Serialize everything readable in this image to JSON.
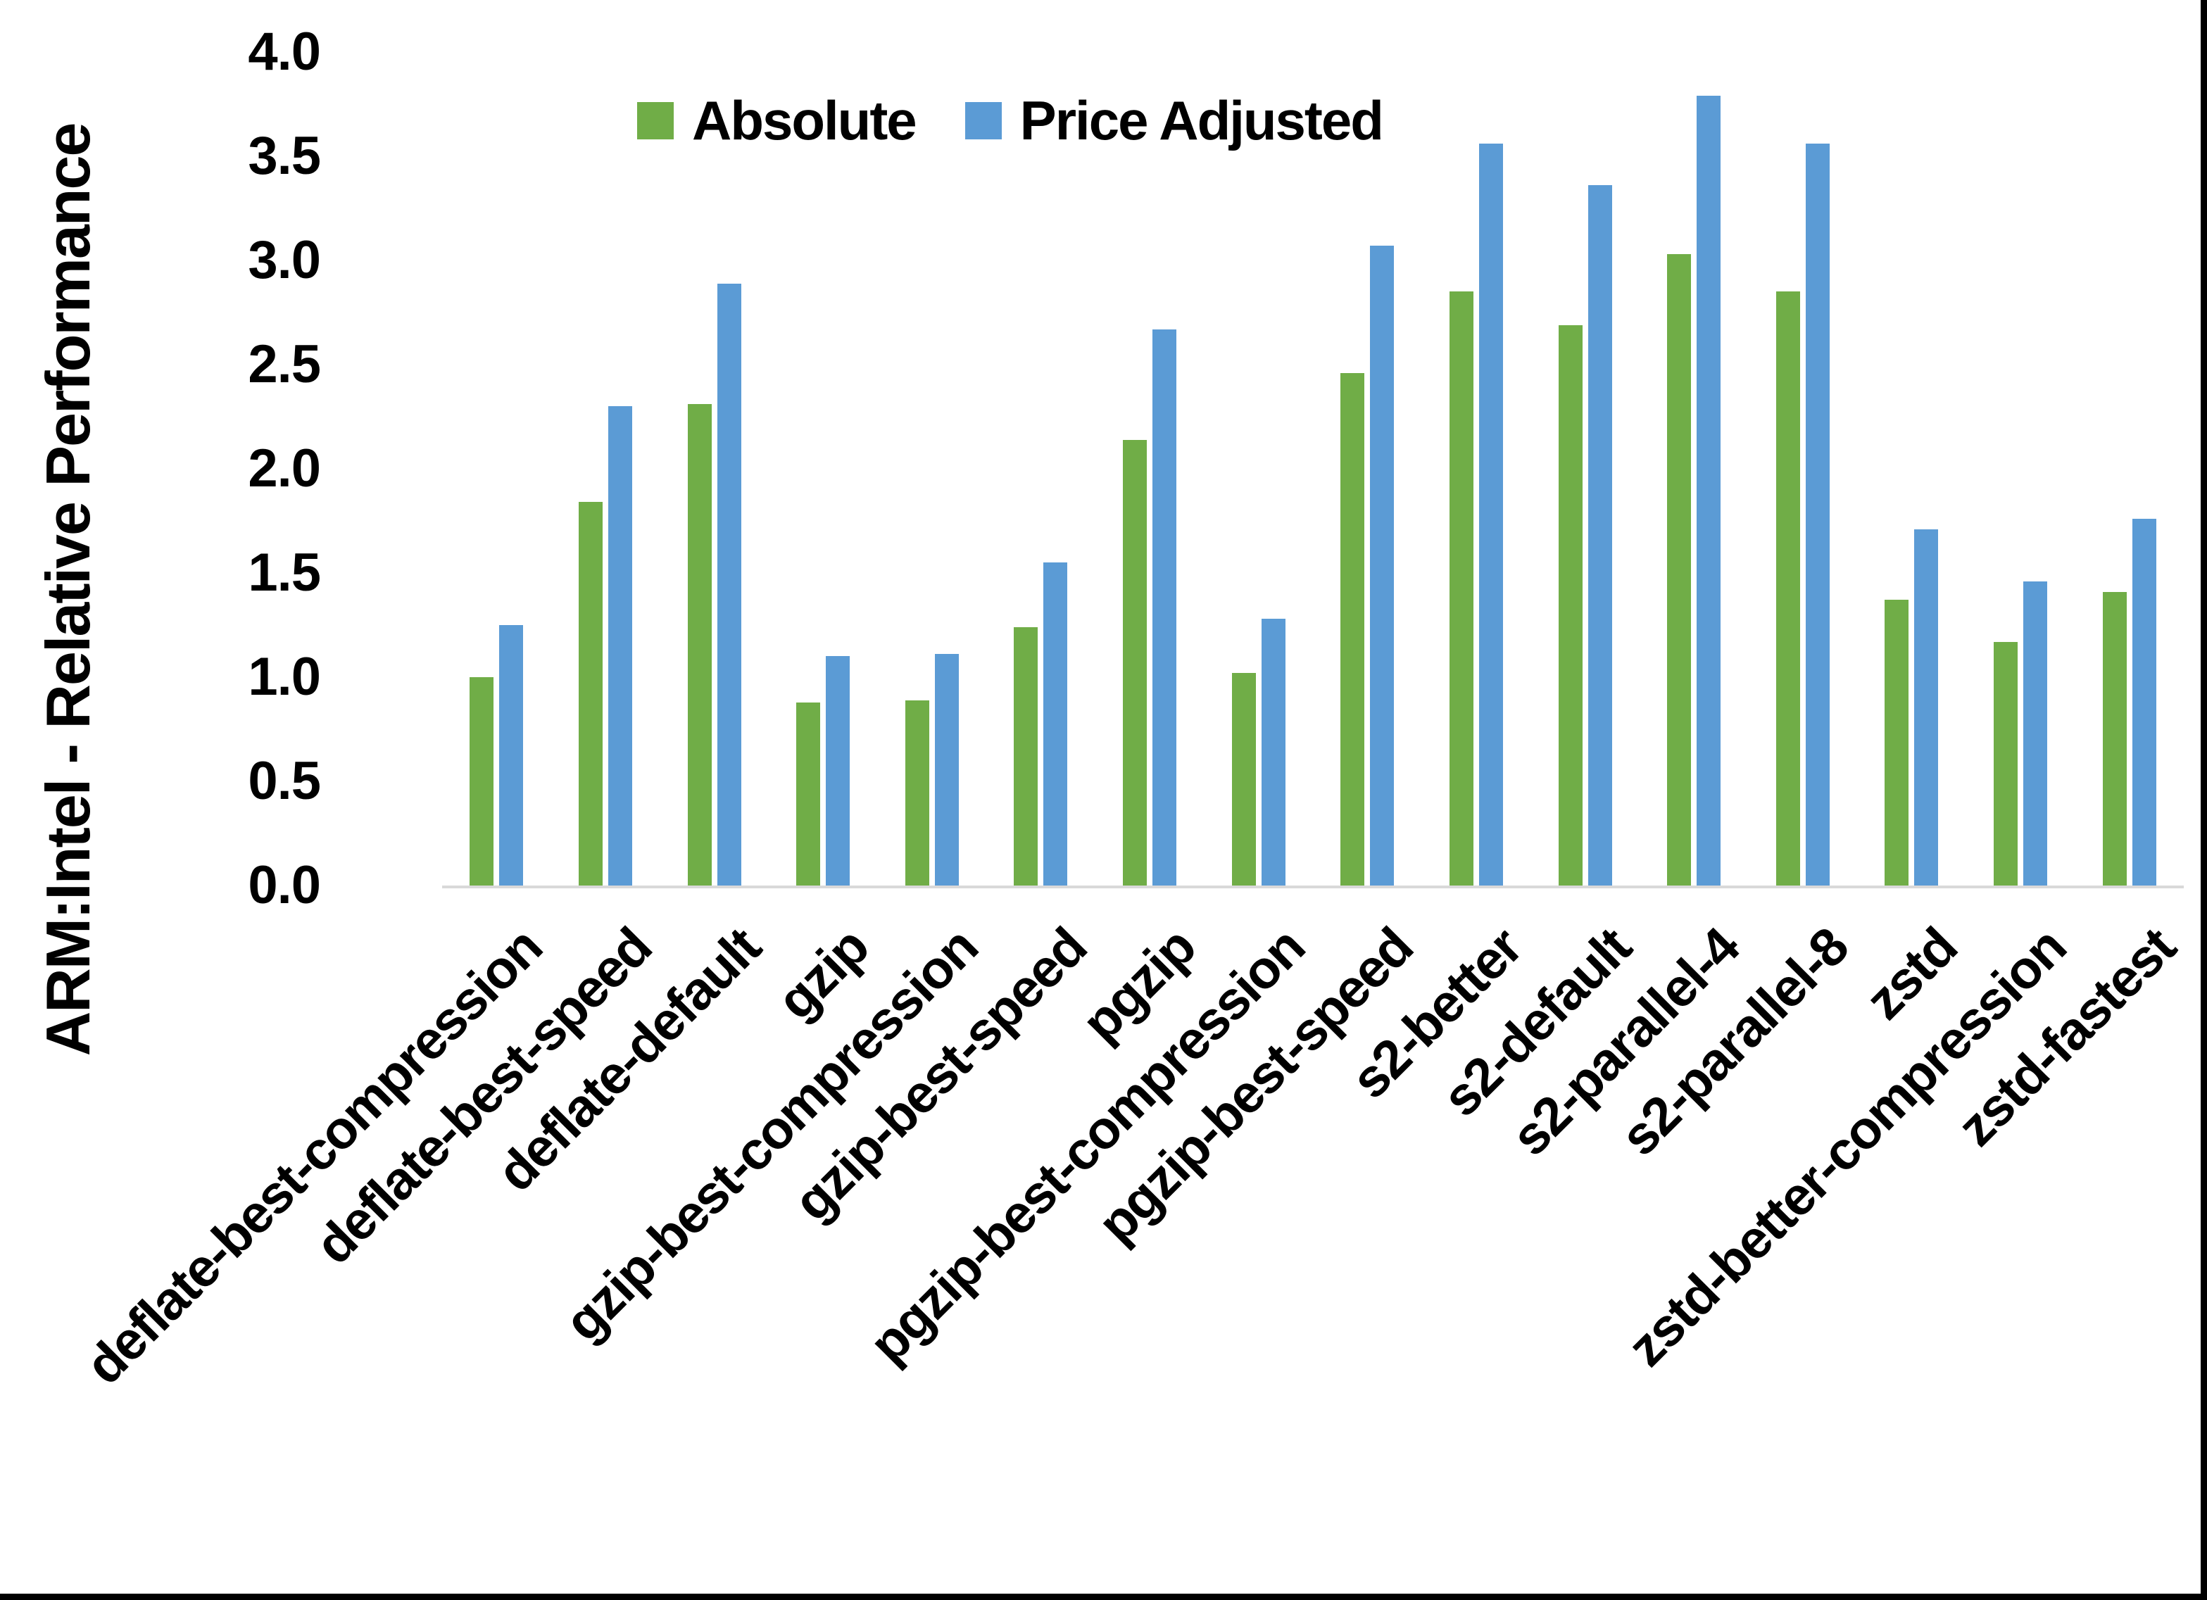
{
  "colors": {
    "absolute": "#70AD47",
    "price_adjusted": "#5B9BD5",
    "axis_line": "#D9D9D9",
    "text": "#000000",
    "frame_border": "#000000"
  },
  "chart_data": {
    "type": "bar",
    "title": "",
    "ylabel": "ARM:Intel - Relative Performance",
    "xlabel": "",
    "ylim": [
      0.0,
      4.0
    ],
    "ytick_step": 0.5,
    "yticks": [
      4.0,
      3.5,
      3.0,
      2.5,
      2.0,
      1.5,
      1.0,
      0.5,
      0.0
    ],
    "grid": false,
    "legend_position": "top-center",
    "categories": [
      "deflate-best-compression",
      "deflate-best-speed",
      "deflate-default",
      "gzip",
      "gzip-best-compression",
      "gzip-best-speed",
      "pgzip",
      "pgzip-best-compression",
      "pgzip-best-speed",
      "s2-better",
      "s2-default",
      "s2-parallel-4",
      "s2-parallel-8",
      "zstd",
      "zstd-better-compression",
      "zstd-fastest"
    ],
    "series": [
      {
        "name": "Absolute",
        "color": "#70AD47",
        "values": [
          1.0,
          1.84,
          2.31,
          0.88,
          0.89,
          1.24,
          2.14,
          1.02,
          2.46,
          2.85,
          2.69,
          3.03,
          2.85,
          1.37,
          1.17,
          1.41
        ]
      },
      {
        "name": "Price Adjusted",
        "color": "#5B9BD5",
        "values": [
          1.25,
          2.3,
          2.89,
          1.1,
          1.11,
          1.55,
          2.67,
          1.28,
          3.07,
          3.56,
          3.36,
          3.79,
          3.56,
          1.71,
          1.46,
          1.76
        ]
      }
    ]
  }
}
